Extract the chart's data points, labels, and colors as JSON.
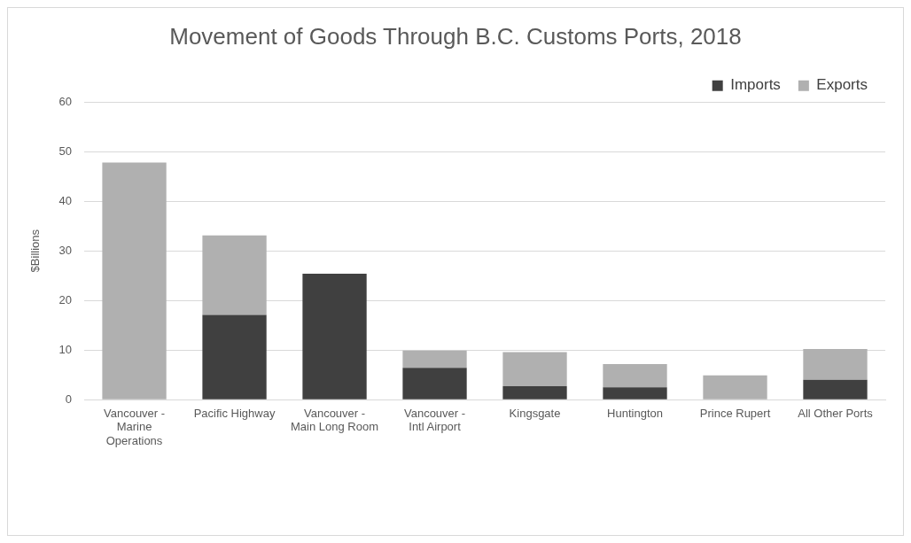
{
  "chart_data": {
    "type": "bar",
    "title": "Movement of Goods Through B.C. Customs Ports, 2018",
    "ylabel": "$Billions",
    "categories": [
      "Vancouver - Marine Operations",
      "Pacific Highway",
      "Vancouver - Main Long Room",
      "Vancouver - Intl Airport",
      "Kingsgate",
      "Huntington",
      "Prince Rupert",
      "All Other Ports"
    ],
    "series": [
      {
        "name": "Imports",
        "color": "#404040",
        "values": [
          0,
          17.1,
          25.4,
          6.4,
          2.7,
          2.5,
          0,
          4.0
        ]
      },
      {
        "name": "Exports",
        "color": "#b0b0b0",
        "values": [
          47.8,
          16.0,
          0,
          3.5,
          6.9,
          4.7,
          4.9,
          6.2
        ]
      }
    ],
    "stacked": true,
    "ylim": [
      0,
      60
    ],
    "yticks": [
      0,
      10,
      20,
      30,
      40,
      50,
      60
    ],
    "grid": "y",
    "legend": "top right"
  }
}
